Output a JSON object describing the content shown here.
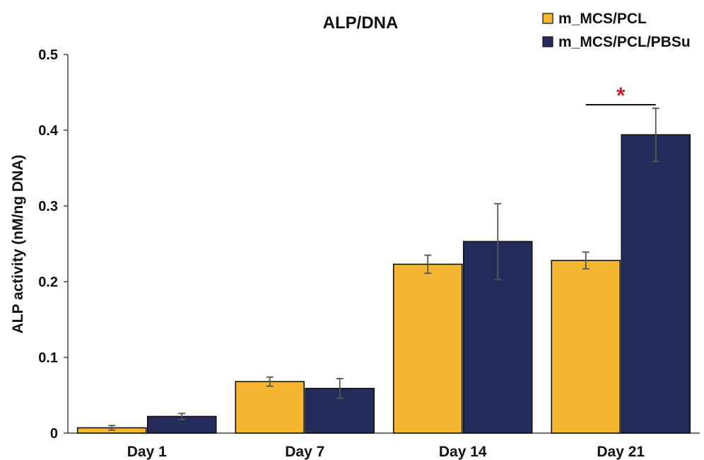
{
  "chart_data": {
    "type": "bar",
    "title": "ALP/DNA",
    "xlabel": "",
    "ylabel": "ALP activity (nM/ng DNA)",
    "categories": [
      "Day 1",
      "Day 7",
      "Day 14",
      "Day 21"
    ],
    "ylim": [
      0,
      0.5
    ],
    "yticks": [
      "0",
      "0.1",
      "0.2",
      "0.3",
      "0.4",
      "0.5"
    ],
    "ytick_values": [
      0,
      0.1,
      0.2,
      0.3,
      0.4,
      0.5
    ],
    "grid": false,
    "legend_position": "top-right",
    "series": [
      {
        "name": "m_MCS/PCL",
        "color": "#F5B731",
        "values": [
          0.007,
          0.068,
          0.223,
          0.228
        ],
        "errors": [
          0.003,
          0.006,
          0.012,
          0.011
        ]
      },
      {
        "name": "m_MCS/PCL/PBSu",
        "color": "#252B5A",
        "values": [
          0.022,
          0.059,
          0.253,
          0.394
        ],
        "errors": [
          0.004,
          0.013,
          0.05,
          0.035
        ]
      }
    ],
    "annotations": [
      {
        "category": "Day 21",
        "text": "*",
        "color": "#C0282D"
      }
    ]
  }
}
